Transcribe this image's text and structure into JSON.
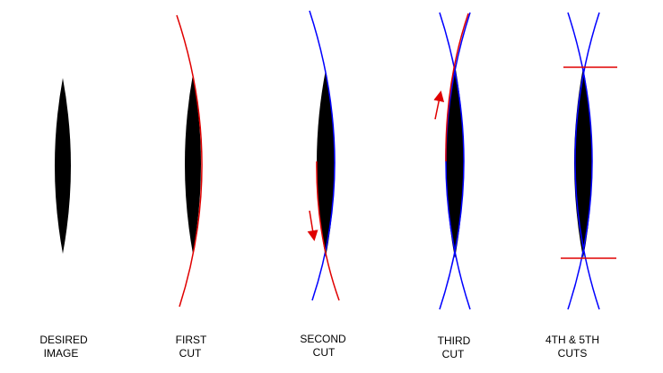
{
  "panels": [
    {
      "label": [
        "DESIRED",
        "IMAGE"
      ]
    },
    {
      "label": [
        "FIRST",
        "CUT"
      ]
    },
    {
      "label": [
        "SECOND",
        "CUT"
      ]
    },
    {
      "label": [
        "THIRD",
        "CUT"
      ]
    },
    {
      "label": [
        "4TH & 5TH",
        "CUTS"
      ]
    }
  ]
}
